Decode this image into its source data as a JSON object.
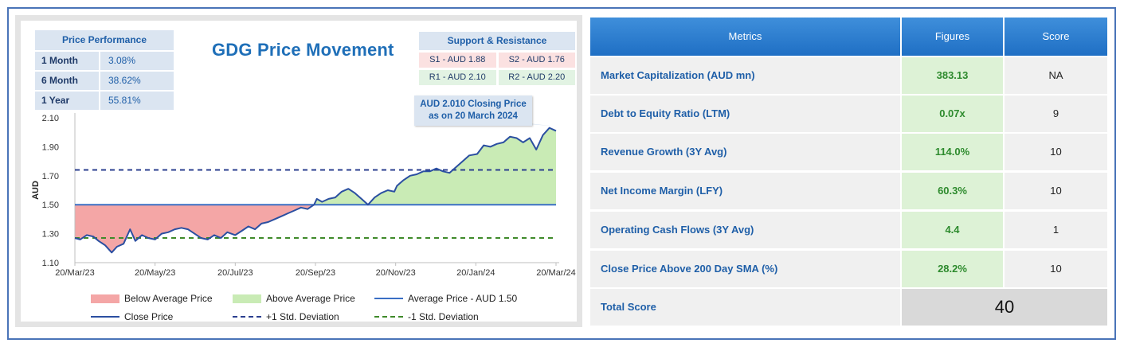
{
  "chart_data": {
    "type": "line",
    "title": "GDG Price Movement",
    "ylabel": "AUD",
    "xlabel": "",
    "ylim": [
      1.1,
      2.1
    ],
    "y_ticks": [
      "1.10",
      "1.30",
      "1.50",
      "1.70",
      "1.90",
      "2.10"
    ],
    "x_ticks": [
      "20/Mar/23",
      "20/May/23",
      "20/Jul/23",
      "20/Sep/23",
      "20/Nov/23",
      "20/Jan/24",
      "20/Mar/24"
    ],
    "average_price": 1.5,
    "plus_1_std": 1.74,
    "minus_1_std": 1.27,
    "series": [
      {
        "name": "Close Price",
        "dates": [
          "2023-03-20",
          "2023-03-24",
          "2023-03-29",
          "2023-04-03",
          "2023-04-07",
          "2023-04-12",
          "2023-04-17",
          "2023-04-21",
          "2023-04-26",
          "2023-05-01",
          "2023-05-05",
          "2023-05-10",
          "2023-05-15",
          "2023-05-20",
          "2023-05-25",
          "2023-05-30",
          "2023-06-04",
          "2023-06-09",
          "2023-06-14",
          "2023-06-19",
          "2023-06-24",
          "2023-06-29",
          "2023-07-04",
          "2023-07-09",
          "2023-07-14",
          "2023-07-20",
          "2023-07-25",
          "2023-07-30",
          "2023-08-04",
          "2023-08-09",
          "2023-08-14",
          "2023-08-19",
          "2023-08-24",
          "2023-08-29",
          "2023-09-03",
          "2023-09-08",
          "2023-09-13",
          "2023-09-18",
          "2023-09-20",
          "2023-09-24",
          "2023-09-29",
          "2023-10-04",
          "2023-10-09",
          "2023-10-14",
          "2023-10-19",
          "2023-10-24",
          "2023-10-29",
          "2023-11-03",
          "2023-11-08",
          "2023-11-13",
          "2023-11-18",
          "2023-11-20",
          "2023-11-25",
          "2023-11-30",
          "2023-12-05",
          "2023-12-10",
          "2023-12-15",
          "2023-12-20",
          "2023-12-25",
          "2023-12-30",
          "2024-01-04",
          "2024-01-09",
          "2024-01-14",
          "2024-01-20",
          "2024-01-25",
          "2024-01-30",
          "2024-02-04",
          "2024-02-09",
          "2024-02-14",
          "2024-02-19",
          "2024-02-24",
          "2024-02-29",
          "2024-03-05",
          "2024-03-10",
          "2024-03-15",
          "2024-03-20"
        ],
        "values": [
          1.27,
          1.26,
          1.29,
          1.28,
          1.25,
          1.22,
          1.17,
          1.21,
          1.23,
          1.33,
          1.25,
          1.29,
          1.27,
          1.26,
          1.3,
          1.31,
          1.33,
          1.34,
          1.33,
          1.3,
          1.27,
          1.26,
          1.29,
          1.27,
          1.31,
          1.29,
          1.32,
          1.35,
          1.33,
          1.37,
          1.38,
          1.4,
          1.42,
          1.44,
          1.46,
          1.48,
          1.47,
          1.5,
          1.54,
          1.52,
          1.54,
          1.55,
          1.59,
          1.61,
          1.58,
          1.54,
          1.5,
          1.55,
          1.58,
          1.6,
          1.59,
          1.63,
          1.67,
          1.7,
          1.71,
          1.73,
          1.73,
          1.75,
          1.73,
          1.72,
          1.76,
          1.8,
          1.84,
          1.85,
          1.91,
          1.9,
          1.92,
          1.93,
          1.97,
          1.96,
          1.93,
          1.96,
          1.88,
          1.98,
          2.03,
          2.01
        ]
      }
    ],
    "legend": [
      "Below Average Price",
      "Above Average Price",
      "Average Price - AUD 1.50",
      "Close Price",
      "+1 Std. Deviation",
      "-1 Std. Deviation"
    ],
    "colors": {
      "close": "#2b4fa1",
      "average": "#3a6fc4",
      "plus_std": "#2b3f8f",
      "minus_std": "#3f8a2a",
      "below_fill": "#f4a6a6",
      "above_fill": "#c9ebb5",
      "axis": "#333333"
    }
  },
  "performance": {
    "title": "Price Performance",
    "rows": [
      {
        "label": "1 Month",
        "value": "3.08%"
      },
      {
        "label": "6 Month",
        "value": "38.62%"
      },
      {
        "label": "1 Year",
        "value": "55.81%"
      }
    ]
  },
  "support_resistance": {
    "title": "Support & Resistance",
    "s1": "S1 - AUD 1.88",
    "s2": "S2 - AUD 1.76",
    "r1": "R1 - AUD 2.10",
    "r2": "R2 - AUD 2.20"
  },
  "callout": {
    "line1": "AUD 2.010 Closing Price",
    "line2": "as on  20 March 2024"
  },
  "metrics_table": {
    "headers": [
      "Metrics",
      "Figures",
      "Score"
    ],
    "rows": [
      {
        "metric": "Market Capitalization (AUD mn)",
        "figure": "383.13",
        "score": "NA"
      },
      {
        "metric": "Debt to Equity Ratio (LTM)",
        "figure": "0.07x",
        "score": "9"
      },
      {
        "metric": "Revenue Growth (3Y Avg)",
        "figure": "114.0%",
        "score": "10"
      },
      {
        "metric": "Net Income Margin (LFY)",
        "figure": "60.3%",
        "score": "10"
      },
      {
        "metric": "Operating Cash Flows (3Y Avg)",
        "figure": "4.4",
        "score": "1"
      },
      {
        "metric": "Close Price Above 200 Day SMA (%)",
        "figure": "28.2%",
        "score": "10"
      }
    ],
    "total_label": "Total Score",
    "total_value": "40"
  }
}
